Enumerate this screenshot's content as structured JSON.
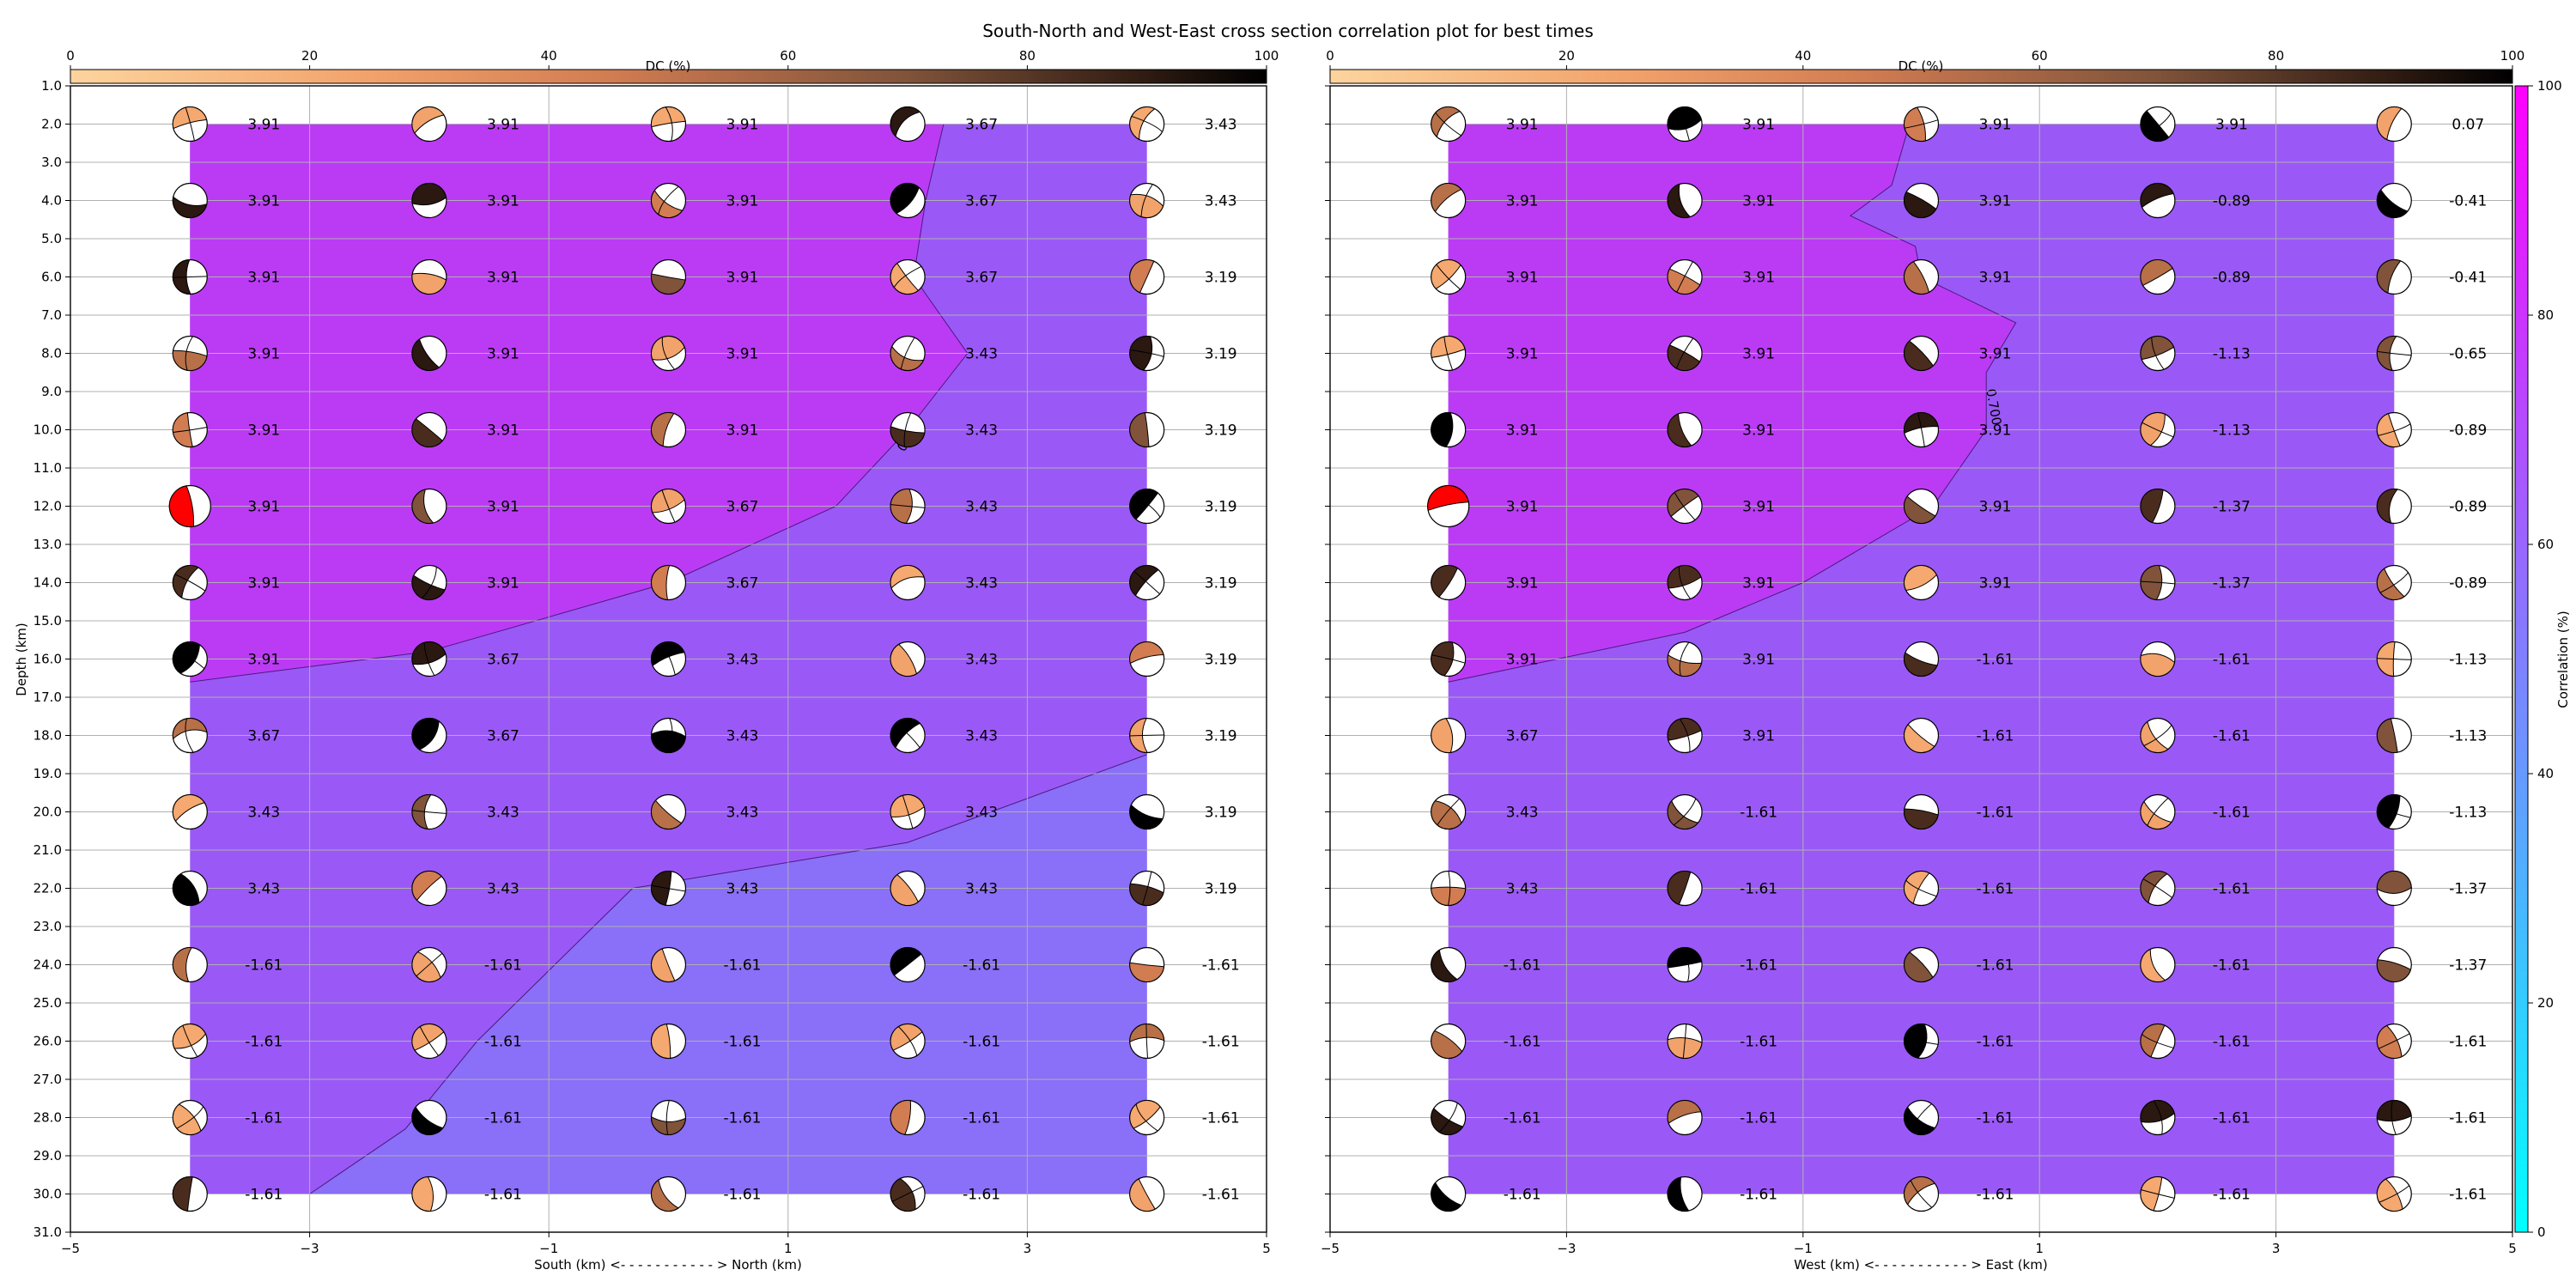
{
  "figure": {
    "title": "South-North and West-East cross section correlation plot for best times",
    "dc_colorbar_label": "DC (%)",
    "corr_colorbar_label": "Correlation (%)"
  },
  "chart_data": [
    {
      "type": "heatmap",
      "panel": "left",
      "xlabel": "South (km) <- - - - - - - - - - - > North (km)",
      "ylabel": "Depth (km)",
      "xlim": [
        -5,
        5
      ],
      "ylim": [
        31.0,
        1.0
      ],
      "x_ticks": [
        "−5",
        "−3",
        "−1",
        "1",
        "3",
        "5"
      ],
      "y_ticks": [
        "1.0",
        "2.0",
        "3.0",
        "4.0",
        "5.0",
        "6.0",
        "7.0",
        "8.0",
        "9.0",
        "10.0",
        "11.0",
        "12.0",
        "13.0",
        "14.0",
        "15.0",
        "16.0",
        "17.0",
        "18.0",
        "19.0",
        "20.0",
        "21.0",
        "22.0",
        "23.0",
        "24.0",
        "25.0",
        "26.0",
        "27.0",
        "28.0",
        "29.0",
        "30.0",
        "31.0"
      ],
      "x": [
        -4,
        -2,
        0,
        2,
        4
      ],
      "depths": [
        2,
        4,
        6,
        8,
        10,
        12,
        14,
        16,
        18,
        20,
        22,
        24,
        26,
        28,
        30
      ],
      "values": [
        [
          "3.91",
          "3.91",
          "3.91",
          "3.67",
          "3.43"
        ],
        [
          "3.91",
          "3.91",
          "3.91",
          "3.67",
          "3.43"
        ],
        [
          "3.91",
          "3.91",
          "3.91",
          "3.67",
          "3.19"
        ],
        [
          "3.91",
          "3.91",
          "3.91",
          "3.43",
          "3.19"
        ],
        [
          "3.91",
          "3.91",
          "3.91",
          "3.43",
          "3.19"
        ],
        [
          "3.91",
          "3.91",
          "3.67",
          "3.43",
          "3.19"
        ],
        [
          "3.91",
          "3.91",
          "3.67",
          "3.43",
          "3.19"
        ],
        [
          "3.91",
          "3.67",
          "3.43",
          "3.43",
          "3.19"
        ],
        [
          "3.67",
          "3.67",
          "3.43",
          "3.43",
          "3.19"
        ],
        [
          "3.43",
          "3.43",
          "3.43",
          "3.43",
          "3.19"
        ],
        [
          "3.43",
          "3.43",
          "3.43",
          "3.43",
          "3.19"
        ],
        [
          "-1.61",
          "-1.61",
          "-1.61",
          "-1.61",
          "-1.61"
        ],
        [
          "-1.61",
          "-1.61",
          "-1.61",
          "-1.61",
          "-1.61"
        ],
        [
          "-1.61",
          "-1.61",
          "-1.61",
          "-1.61",
          "-1.61"
        ],
        [
          "-1.61",
          "-1.61",
          "-1.61",
          "-1.61",
          "-1.61"
        ]
      ],
      "best_cell": {
        "x": -4,
        "depth": 12
      },
      "contour_label": "0.7",
      "contour_line": [
        [
          2.3,
          2
        ],
        [
          2.15,
          4
        ],
        [
          2.05,
          6
        ],
        [
          2.5,
          8
        ],
        [
          2.0,
          10
        ],
        [
          1.4,
          12
        ],
        [
          0.0,
          14
        ],
        [
          -2.0,
          15.8
        ],
        [
          -4.0,
          16.6
        ]
      ],
      "lower_contour_line": [
        [
          4.0,
          18.5
        ],
        [
          2.0,
          20.8
        ],
        [
          -0.3,
          22.0
        ],
        [
          -1.6,
          26.0
        ],
        [
          -2.2,
          28.3
        ],
        [
          -3.0,
          30.0
        ]
      ]
    },
    {
      "type": "heatmap",
      "panel": "right",
      "xlabel": "West (km) <- - - - - - - - - - - > East (km)",
      "ylabel": "",
      "xlim": [
        -5,
        5
      ],
      "ylim": [
        31.0,
        1.0
      ],
      "x_ticks": [
        "−5",
        "−3",
        "−1",
        "1",
        "3",
        "5"
      ],
      "x": [
        -4,
        -2,
        0,
        2,
        4
      ],
      "depths": [
        2,
        4,
        6,
        8,
        10,
        12,
        14,
        16,
        18,
        20,
        22,
        24,
        26,
        28,
        30
      ],
      "values": [
        [
          "3.91",
          "3.91",
          "3.91",
          "3.91",
          "0.07"
        ],
        [
          "3.91",
          "3.91",
          "3.91",
          "-0.89",
          "-0.41"
        ],
        [
          "3.91",
          "3.91",
          "3.91",
          "-0.89",
          "-0.41"
        ],
        [
          "3.91",
          "3.91",
          "3.91",
          "-1.13",
          "-0.65"
        ],
        [
          "3.91",
          "3.91",
          "3.91",
          "-1.13",
          "-0.89"
        ],
        [
          "3.91",
          "3.91",
          "3.91",
          "-1.37",
          "-0.89"
        ],
        [
          "3.91",
          "3.91",
          "3.91",
          "-1.37",
          "-0.89"
        ],
        [
          "3.91",
          "3.91",
          "-1.61",
          "-1.61",
          "-1.13"
        ],
        [
          "3.67",
          "3.91",
          "-1.61",
          "-1.61",
          "-1.13"
        ],
        [
          "3.43",
          "-1.61",
          "-1.61",
          "-1.61",
          "-1.13"
        ],
        [
          "3.43",
          "-1.61",
          "-1.61",
          "-1.61",
          "-1.37"
        ],
        [
          "-1.61",
          "-1.61",
          "-1.61",
          "-1.61",
          "-1.37"
        ],
        [
          "-1.61",
          "-1.61",
          "-1.61",
          "-1.61",
          "-1.61"
        ],
        [
          "-1.61",
          "-1.61",
          "-1.61",
          "-1.61",
          "-1.61"
        ],
        [
          "-1.61",
          "-1.61",
          "-1.61",
          "-1.61",
          "-1.61"
        ]
      ],
      "best_cell": {
        "x": -4,
        "depth": 12
      },
      "contour_label": "0.700",
      "contour_line": [
        [
          -0.1,
          2
        ],
        [
          -0.25,
          3.6
        ],
        [
          -0.6,
          4.4
        ],
        [
          -0.05,
          5.2
        ],
        [
          0.0,
          6.0
        ],
        [
          0.8,
          7.2
        ],
        [
          0.55,
          8.5
        ],
        [
          0.55,
          10.0
        ],
        [
          0.1,
          12.0
        ],
        [
          -1.0,
          14.0
        ],
        [
          -2.0,
          15.3
        ],
        [
          -4.0,
          16.6
        ]
      ]
    }
  ],
  "dc_colorbar": {
    "ticks": [
      "0",
      "20",
      "40",
      "60",
      "80",
      "100"
    ]
  },
  "corr_colorbar": {
    "ticks": [
      "0",
      "20",
      "40",
      "60",
      "80",
      "100"
    ]
  },
  "colors": {
    "upper_region": "#bb3bf5",
    "lower_region": "#8a6ff8",
    "mid_region": "#9a59f6",
    "best_fill": "#ff0000"
  }
}
